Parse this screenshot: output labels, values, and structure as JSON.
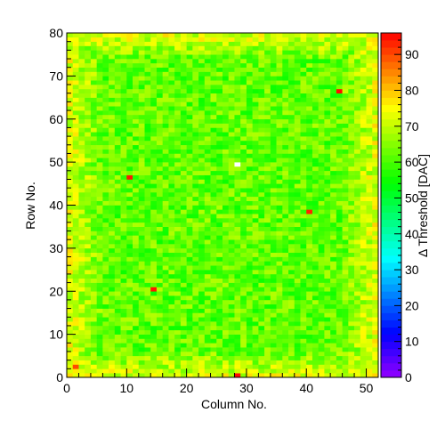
{
  "chart_data": {
    "type": "heatmap",
    "title": "",
    "xlabel": "Column No.",
    "ylabel": "Row No.",
    "colorbar_label": "Δ Threshold [DAC]",
    "n_columns": 52,
    "n_rows": 80,
    "xlim": [
      0,
      52
    ],
    "ylim": [
      0,
      80
    ],
    "zlim": [
      0,
      96
    ],
    "x_ticks": [
      "0",
      "10",
      "20",
      "30",
      "40",
      "50"
    ],
    "y_ticks": [
      "0",
      "10",
      "20",
      "30",
      "40",
      "50",
      "60",
      "70",
      "80"
    ],
    "z_ticks": [
      "0",
      "10",
      "20",
      "30",
      "40",
      "50",
      "60",
      "70",
      "80",
      "90"
    ],
    "palette": "rainbow (violet → blue → cyan → green → yellow → orange → red)",
    "typical_value_center": 62,
    "typical_value_edge": 72,
    "hot_pixels": [
      {
        "column": 45,
        "row": 66,
        "value": 95
      },
      {
        "column": 10,
        "row": 46,
        "value": 94
      },
      {
        "column": 40,
        "row": 38,
        "value": 93
      },
      {
        "column": 14,
        "row": 20,
        "value": 94
      },
      {
        "column": 28,
        "row": 0,
        "value": 95
      },
      {
        "column": 1,
        "row": 2,
        "value": 90
      }
    ],
    "dead_pixels": [
      {
        "column": 28,
        "row": 49
      }
    ],
    "grid": false,
    "colorbar_position": "right"
  }
}
